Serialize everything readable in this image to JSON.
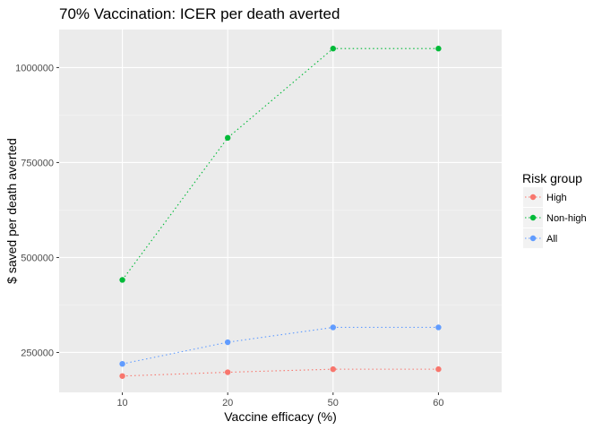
{
  "chart_data": {
    "type": "line",
    "title": "70% Vaccination: ICER per death averted",
    "xlabel": "Vaccine efficacy (%)",
    "ylabel": "$ saved per death averted",
    "categories": [
      "10",
      "20",
      "50",
      "60"
    ],
    "ylim": [
      145000,
      1100000
    ],
    "yticks": [
      250000,
      500000,
      750000,
      1000000
    ],
    "ytick_labels": [
      "250000",
      "500000",
      "750000",
      "1000000"
    ],
    "grid": true,
    "legend_title": "Risk group",
    "legend_position": "right",
    "series": [
      {
        "name": "High",
        "color": "#F8766D",
        "values": [
          188000,
          198000,
          206000,
          206000
        ]
      },
      {
        "name": "Non-high",
        "color": "#00BA38",
        "values": [
          441000,
          815000,
          1050000,
          1050000
        ]
      },
      {
        "name": "All",
        "color": "#619CFF",
        "values": [
          220000,
          277000,
          316000,
          316000
        ]
      }
    ]
  }
}
